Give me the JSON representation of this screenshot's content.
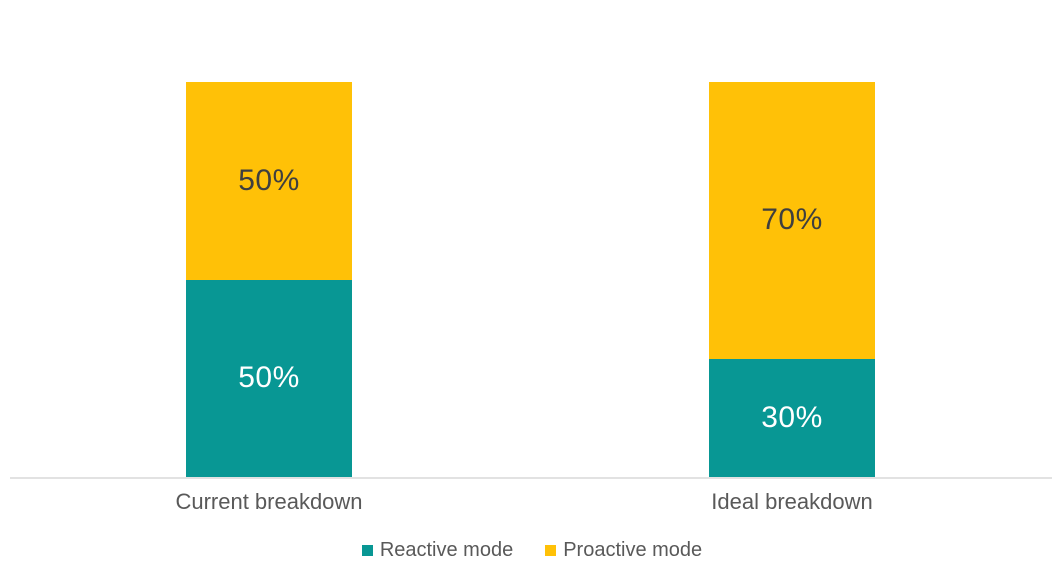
{
  "chart_data": {
    "type": "bar",
    "stacked": true,
    "orientation": "vertical",
    "title": "",
    "xlabel": "",
    "ylabel": "",
    "ylim": [
      0,
      100
    ],
    "grid": false,
    "axes_ticks_visible": false,
    "legend_position": "bottom",
    "categories": [
      "Current breakdown",
      "Ideal breakdown"
    ],
    "series": [
      {
        "name": "Reactive mode",
        "values": [
          50,
          30
        ],
        "data_labels": [
          "50%",
          "30%"
        ],
        "color": "#089794",
        "label_color": "#ffffff"
      },
      {
        "name": "Proactive mode",
        "values": [
          50,
          70
        ],
        "data_labels": [
          "50%",
          "70%"
        ],
        "color": "#ffc107",
        "label_color": "#3f3f3f"
      }
    ],
    "value_format": "percent"
  },
  "colors": {
    "background": "#ffffff",
    "axis_line": "#e2e2e2",
    "category_text": "#595959",
    "legend_text": "#595959"
  }
}
